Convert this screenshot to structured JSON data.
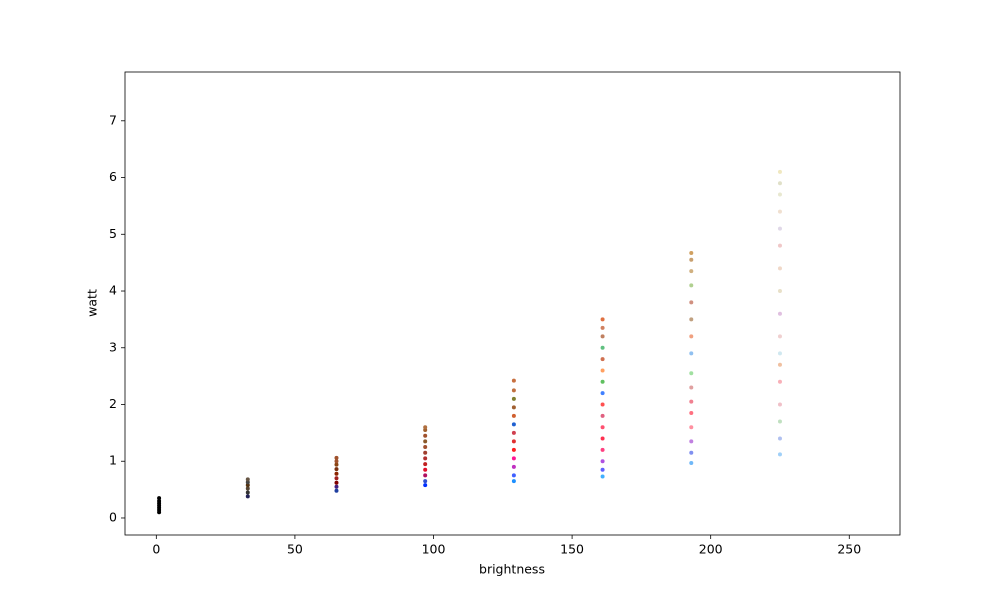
{
  "chart_data": {
    "type": "scatter",
    "x_label": "brightness",
    "y_label": "watt",
    "xlim": [
      -11.3,
      268.3
    ],
    "ylim": [
      -0.3,
      7.86
    ],
    "xticks": [
      0,
      50,
      100,
      150,
      200,
      250
    ],
    "yticks": [
      0,
      1,
      2,
      3,
      4,
      5,
      6,
      7
    ],
    "grid": false,
    "x": [
      1,
      1,
      1,
      1,
      1,
      1,
      1,
      33,
      33,
      33,
      33,
      33,
      33,
      65,
      65,
      65,
      65,
      65,
      65,
      65,
      65,
      65,
      97,
      97,
      97,
      97,
      97,
      97,
      97,
      97,
      97,
      97,
      97,
      97,
      129,
      129,
      129,
      129,
      129,
      129,
      129,
      129,
      129,
      129,
      129,
      129,
      129,
      161,
      161,
      161,
      161,
      161,
      161,
      161,
      161,
      161,
      161,
      161,
      161,
      161,
      161,
      161,
      161,
      193,
      193,
      193,
      193,
      193,
      193,
      193,
      193,
      193,
      193,
      193,
      193,
      193,
      193,
      193,
      193,
      225,
      225,
      225,
      225,
      225,
      225,
      225,
      225,
      225,
      225,
      225,
      225,
      225,
      225,
      225,
      225,
      225
    ],
    "y": [
      0.1,
      0.14,
      0.18,
      0.22,
      0.26,
      0.3,
      0.35,
      0.38,
      0.45,
      0.52,
      0.58,
      0.63,
      0.68,
      0.48,
      0.55,
      0.62,
      0.7,
      0.78,
      0.86,
      0.94,
      1.0,
      1.06,
      0.58,
      0.65,
      0.75,
      0.85,
      0.95,
      1.05,
      1.15,
      1.25,
      1.35,
      1.45,
      1.55,
      1.6,
      0.65,
      0.75,
      0.9,
      1.05,
      1.2,
      1.35,
      1.5,
      1.65,
      1.8,
      1.95,
      2.1,
      2.25,
      2.42,
      0.73,
      0.85,
      1.0,
      1.2,
      1.4,
      1.6,
      1.8,
      2.0,
      2.2,
      2.4,
      2.6,
      2.8,
      3.0,
      3.2,
      3.35,
      3.5,
      0.97,
      1.15,
      1.35,
      1.6,
      1.85,
      2.05,
      2.3,
      2.55,
      2.9,
      3.2,
      3.5,
      3.8,
      4.1,
      4.35,
      4.55,
      4.67,
      1.12,
      1.4,
      1.7,
      2.0,
      2.4,
      2.7,
      2.9,
      3.2,
      3.6,
      4.0,
      4.4,
      4.8,
      5.1,
      5.4,
      5.7,
      5.9,
      6.1
    ],
    "colors": [
      "#000000",
      "#000000",
      "#000000",
      "#000000",
      "#000000",
      "#000000",
      "#000000",
      "#222255",
      "#333333",
      "#554433",
      "#553311",
      "#444444",
      "#665544",
      "#1f3fa0",
      "#402080",
      "#800000",
      "#a02020",
      "#8b2500",
      "#7a3010",
      "#8b4513",
      "#a0522d",
      "#a0522d",
      "#0030ff",
      "#3050d0",
      "#b01060",
      "#e0102a",
      "#c02020",
      "#b03030",
      "#a04030",
      "#a05030",
      "#8b5a2b",
      "#a0522d",
      "#a0602d",
      "#b07040",
      "#1e90ff",
      "#4060ff",
      "#c030c0",
      "#ff1493",
      "#ff2020",
      "#e03030",
      "#d04050",
      "#2060d0",
      "#d06030",
      "#a06030",
      "#808030",
      "#c07040",
      "#c87040",
      "#40b0ff",
      "#6060ff",
      "#b050e0",
      "#ff4080",
      "#ff3050",
      "#ff5070",
      "#e06080",
      "#ff5050",
      "#4080ff",
      "#60c060",
      "#ffa060",
      "#d07050",
      "#60c080",
      "#c08060",
      "#d08060",
      "#e07040",
      "#70b8f8",
      "#8090f0",
      "#c080e0",
      "#ff90a0",
      "#ff7080",
      "#f08090",
      "#e0a0a0",
      "#a0e0a0",
      "#90c0f0",
      "#f0a080",
      "#c0a080",
      "#d09080",
      "#b0d090",
      "#d0b080",
      "#c8a070",
      "#d0a060",
      "#a0d0f8",
      "#b0c0f0",
      "#c0e0c0",
      "#f0c0c8",
      "#f8b0b8",
      "#f0c0a0",
      "#d0e8f0",
      "#f0d0d0",
      "#e0c0e0",
      "#e8e0c8",
      "#f0d8c8",
      "#f0c8c8",
      "#e0d8e8",
      "#f0e0d0",
      "#e8e8d0",
      "#e0e0c8",
      "#f0e8c0"
    ]
  }
}
